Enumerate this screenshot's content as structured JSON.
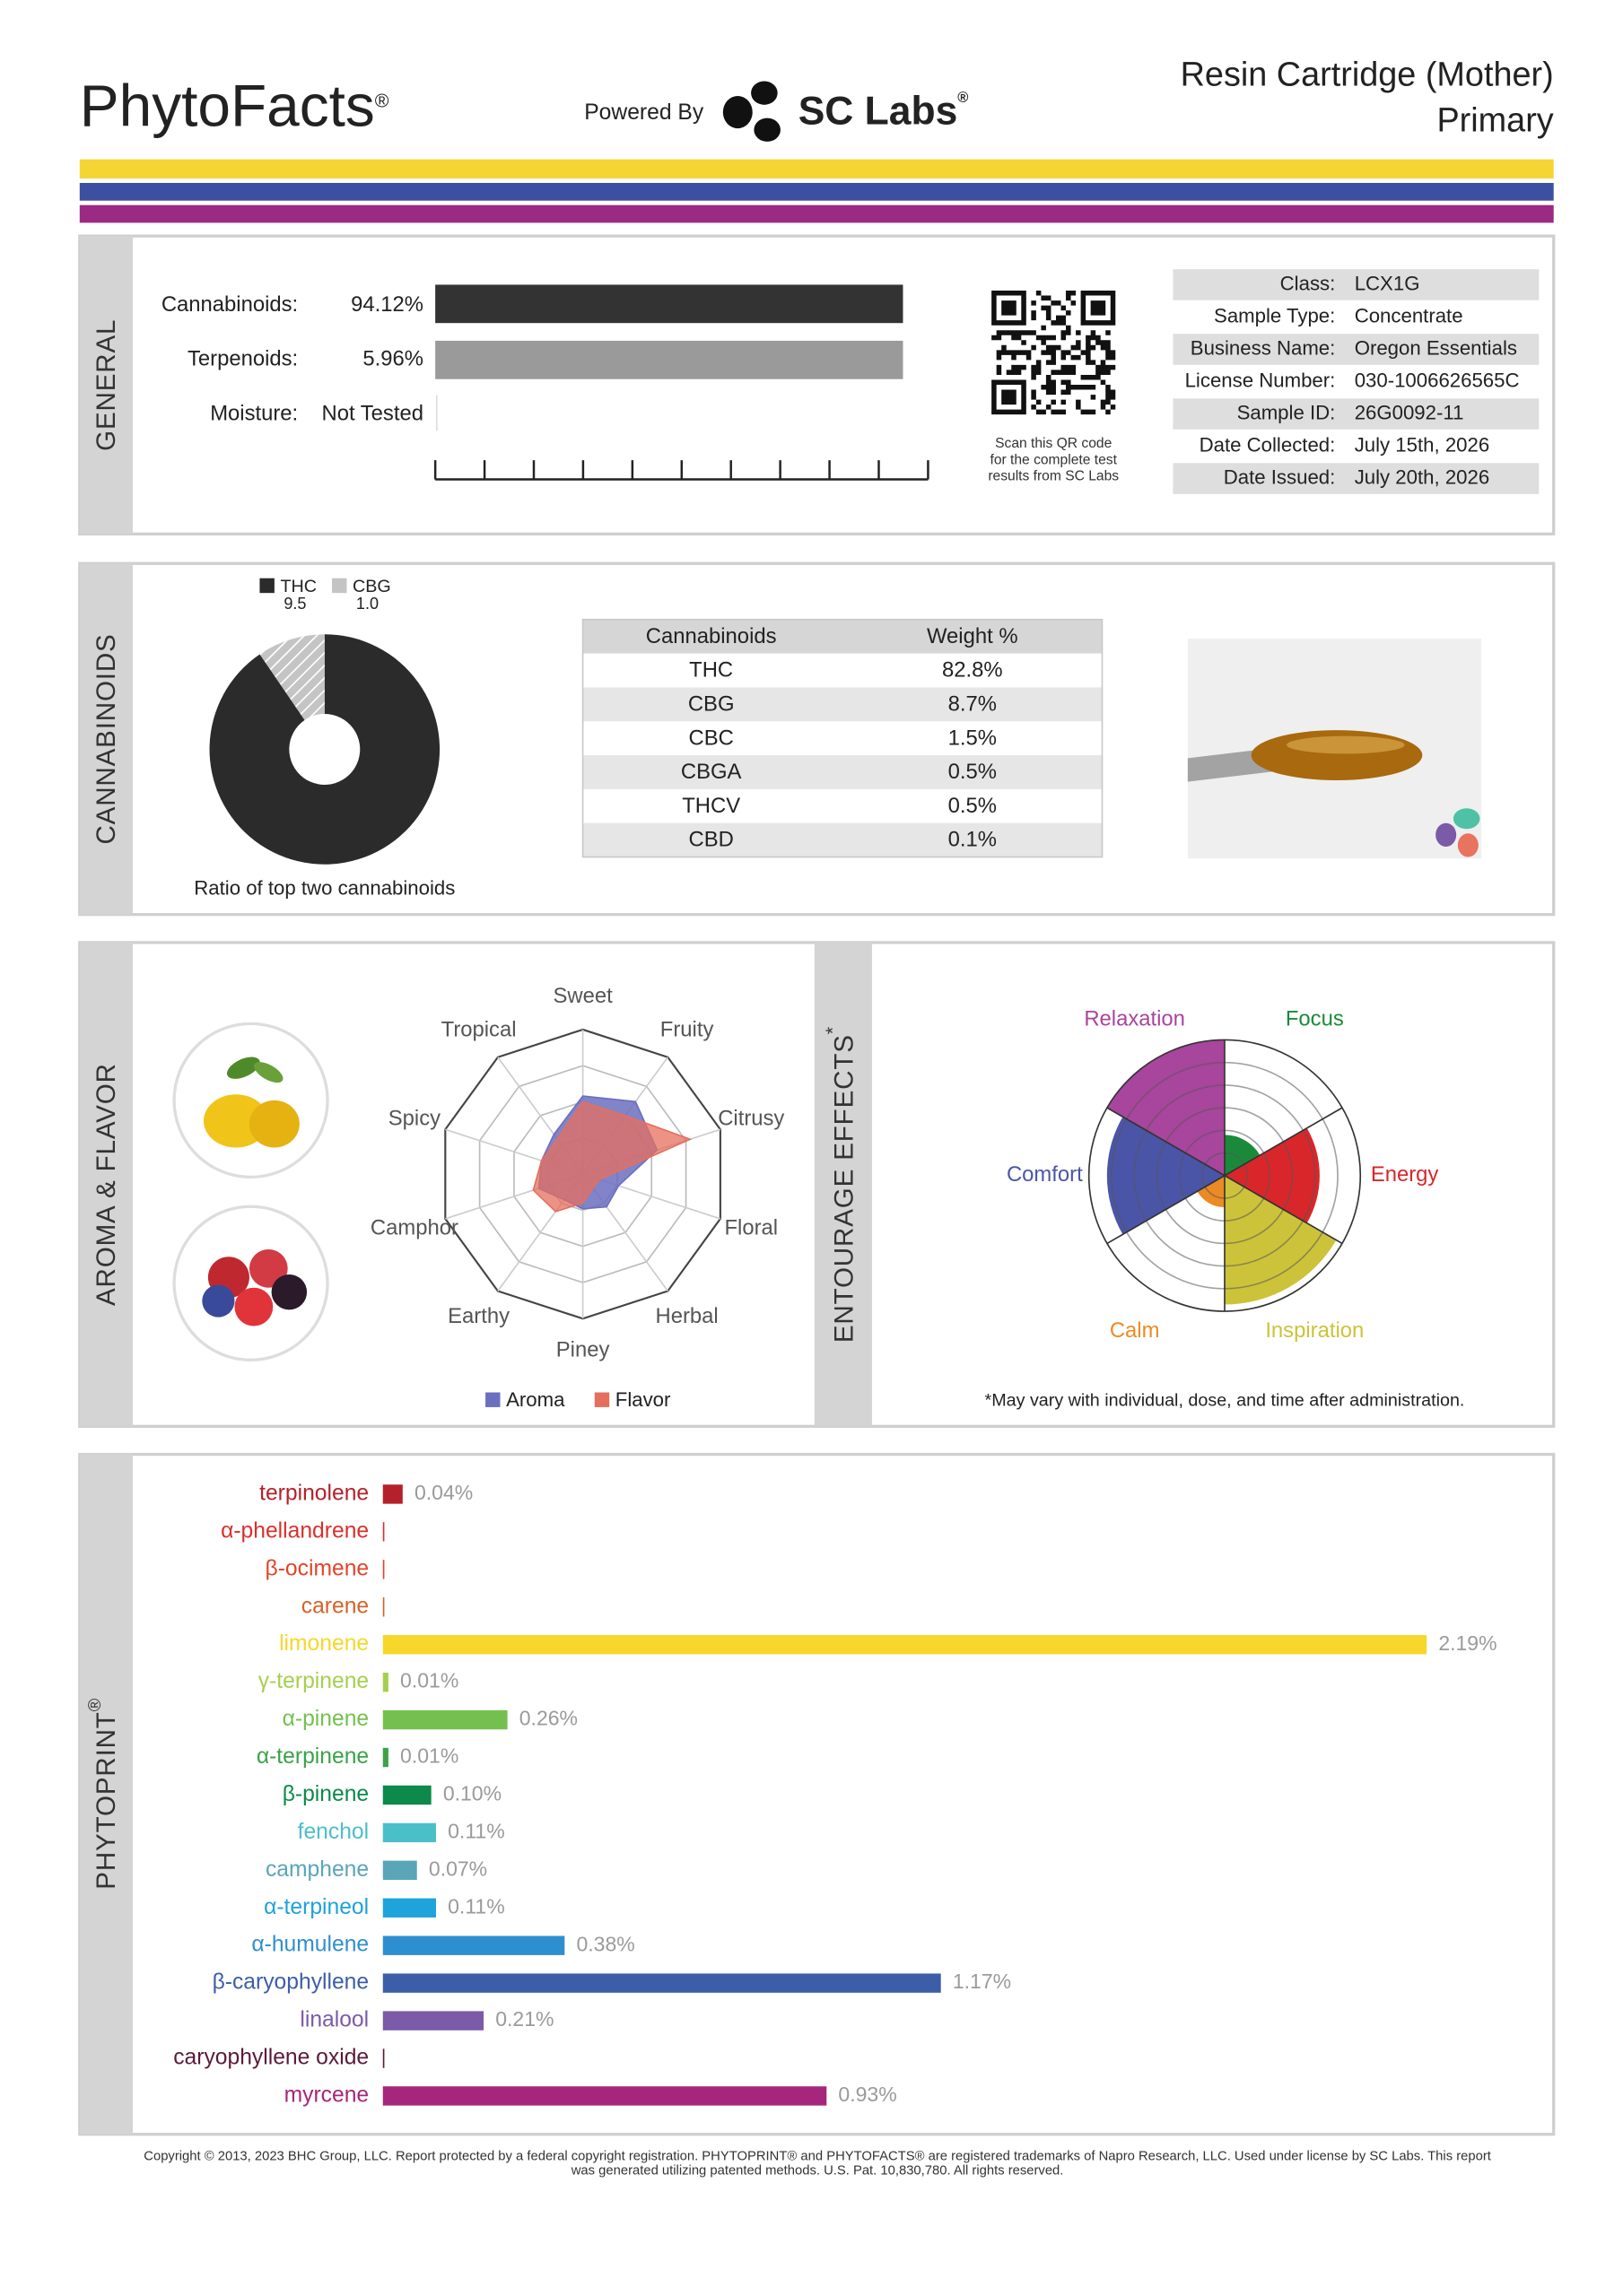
{
  "header": {
    "brand": "PhytoFacts",
    "brand_mark": "®",
    "powered_by": "Powered By",
    "lab": "SC Labs",
    "lab_mark": "®",
    "product": "Resin Cartridge (Mother)",
    "subtitle": "Primary"
  },
  "general": {
    "section": "GENERAL",
    "rows": [
      {
        "label": "Cannabinoids:",
        "value": "94.12%"
      },
      {
        "label": "Terpenoids:",
        "value": "5.96%"
      },
      {
        "label": "Moisture:",
        "value": "Not Tested"
      }
    ],
    "qr_caption": [
      "Scan this QR code",
      "for the complete test",
      "results from SC Labs"
    ],
    "info": [
      {
        "label": "Class:",
        "value": "LCX1G"
      },
      {
        "label": "Sample Type:",
        "value": "Concentrate"
      },
      {
        "label": "Business Name:",
        "value": "Oregon Essentials"
      },
      {
        "label": "License Number:",
        "value": "030-1006626565C"
      },
      {
        "label": "Sample ID:",
        "value": "26G0092-11"
      },
      {
        "label": "Date Collected:",
        "value": "July 15th, 2026"
      },
      {
        "label": "Date Issued:",
        "value": "July 20th, 2026"
      }
    ]
  },
  "cannabinoids": {
    "section": "CANNABINOIDS",
    "pie": {
      "type": "pie",
      "categories": [
        "THC",
        "CBG"
      ],
      "values": [
        9.5,
        1.0
      ],
      "value_labels": [
        "9.5",
        "1.0"
      ],
      "colors": [
        "#2b2b2b",
        "#c4c4c4"
      ],
      "caption": "Ratio of top two cannabinoids"
    },
    "table": {
      "header": [
        "Cannabinoids",
        "Weight %"
      ],
      "rows": [
        [
          "THC",
          "82.8%"
        ],
        [
          "CBG",
          "8.7%"
        ],
        [
          "CBC",
          "1.5%"
        ],
        [
          "CBGA",
          "0.5%"
        ],
        [
          "THCV",
          "0.5%"
        ],
        [
          "CBD",
          "0.1%"
        ]
      ]
    }
  },
  "aroma": {
    "section": "AROMA & FLAVOR",
    "radar": {
      "type": "radar",
      "categories": [
        "Sweet",
        "Fruity",
        "Citrusy",
        "Floral",
        "Herbal",
        "Piney",
        "Earthy",
        "Camphor",
        "Spicy",
        "Tropical"
      ],
      "rlim": [
        0,
        5
      ],
      "series": [
        {
          "name": "Aroma",
          "color": "#6b6fc0",
          "values": [
            2.7,
            3.1,
            2.7,
            1.3,
            1.4,
            1.2,
            1.1,
            1.6,
            1.5,
            1.7
          ]
        },
        {
          "name": "Flavor",
          "color": "#e56f5e",
          "values": [
            2.5,
            2.5,
            3.9,
            0.6,
            0.6,
            1.0,
            1.6,
            1.8,
            1.5,
            1.5
          ]
        }
      ]
    }
  },
  "entourage": {
    "section": "ENTOURAGE EFFECTS",
    "section_mark": "*",
    "polar": {
      "type": "polar-area",
      "categories": [
        "Focus",
        "Energy",
        "Inspiration",
        "Calm",
        "Comfort",
        "Relaxation"
      ],
      "colors": [
        "#1a8a3a",
        "#d9262b",
        "#cdc33a",
        "#ec8a23",
        "#4a55a8",
        "#a8459d"
      ],
      "values": [
        1.8,
        4.2,
        5.7,
        1.4,
        5.2,
        6
      ],
      "rlim": [
        0,
        6
      ]
    },
    "note": "*May vary with individual, dose, and time after administration."
  },
  "phytoprint": {
    "section": "PHYTOPRINT",
    "section_mark": "®",
    "bars": {
      "type": "bar",
      "orientation": "horizontal",
      "categories": [
        "terpinolene",
        "α-phellandrene",
        "β-ocimene",
        "carene",
        "limonene",
        "γ-terpinene",
        "α-pinene",
        "α-terpinene",
        "β-pinene",
        "fenchol",
        "camphene",
        "α-terpineol",
        "α-humulene",
        "β-caryophyllene",
        "linalool",
        "caryophyllene oxide",
        "myrcene"
      ],
      "colors": [
        "#b5212a",
        "#d9302c",
        "#e0452a",
        "#d4622a",
        "#f6d72a",
        "#a5cf4f",
        "#74c04f",
        "#3ba24a",
        "#0c8a4a",
        "#4bbfc8",
        "#5aa5b8",
        "#1ea3da",
        "#2e8fd0",
        "#3c5ea8",
        "#7b5aa8",
        "#5a1a3a",
        "#a5267a"
      ],
      "values": [
        0.04,
        0,
        0,
        0,
        2.19,
        0.01,
        0.26,
        0.01,
        0.1,
        0.11,
        0.07,
        0.11,
        0.38,
        1.17,
        0.21,
        0,
        0.93
      ],
      "value_labels": [
        "0.04%",
        null,
        null,
        null,
        "2.19%",
        "0.01%",
        "0.26%",
        "0.01%",
        "0.10%",
        "0.11%",
        "0.07%",
        "0.11%",
        "0.38%",
        "1.17%",
        "0.21%",
        null,
        "0.93%"
      ],
      "xlim": [
        0,
        2.5
      ]
    }
  },
  "footer": {
    "copyright": [
      "Copyright © 2013, 2023 BHC Group, LLC. Report protected by a federal copyright registration. PHYTOPRINT® and PHYTOFACTS® are registered trademarks of Napro Research, LLC. Used under license by SC Labs. This report",
      "was generated utilizing patented methods. U.S. Pat. 10,830,780. All rights reserved."
    ]
  }
}
